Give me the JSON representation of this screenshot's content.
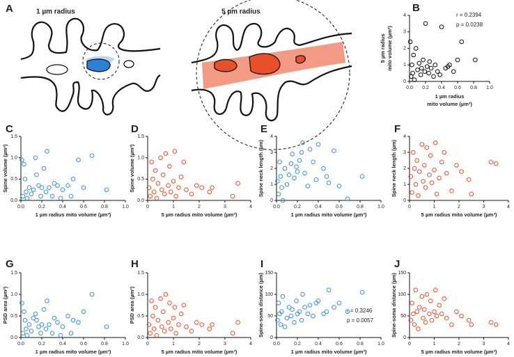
{
  "panel_a": {
    "letter": "A",
    "left_label": "1 µm radius",
    "right_label": "5 µm radius"
  },
  "chart_data": [
    {
      "type": "scatter",
      "panel": "B",
      "xlabel": [
        "1 µm radius",
        "mito volume (µm³)"
      ],
      "ylabel": [
        "5 µm radius",
        "mito volume (µm³)"
      ],
      "color": "#111111",
      "xlim": [
        0,
        1
      ],
      "xticks": [
        {
          "value": 0,
          "label": "0.0"
        },
        {
          "value": 0.2,
          "label": "0.2"
        },
        {
          "value": 0.4,
          "label": "0.4"
        },
        {
          "value": 0.6,
          "label": "0.6"
        },
        {
          "value": 0.8,
          "label": "0.8"
        },
        {
          "value": 1,
          "label": "1.0"
        }
      ],
      "ylim": [
        0,
        4
      ],
      "yticks": [
        0,
        1,
        2,
        3,
        4
      ],
      "annotations": [
        "r = 0.2394",
        "p = 0.0238"
      ],
      "x": [
        0.01,
        0.02,
        0.03,
        0.04,
        0.05,
        0.06,
        0.08,
        0.1,
        0.12,
        0.14,
        0.15,
        0.17,
        0.19,
        0.2,
        0.22,
        0.24,
        0.25,
        0.27,
        0.3,
        0.32,
        0.35,
        0.38,
        0.4,
        0.45,
        0.48,
        0.5,
        0.55,
        0.6,
        0.65,
        0.82
      ],
      "values": [
        2.4,
        0.3,
        1.0,
        0.5,
        1.6,
        0.1,
        2.0,
        0.7,
        1.1,
        0.4,
        0.8,
        1.3,
        0.6,
        3.5,
        0.9,
        0.5,
        1.2,
        0.8,
        0.3,
        1.0,
        0.6,
        0.4,
        3.3,
        0.8,
        0.9,
        1.0,
        0.6,
        1.3,
        2.4,
        1.3
      ]
    },
    {
      "type": "scatter",
      "panel": "C",
      "xlabel": "1 µm radius mito volume (µm³)",
      "ylabel": "Spine volume (µm³)",
      "color": "#3a8fd9",
      "xlim": [
        0,
        1
      ],
      "xticks": [
        {
          "value": 0,
          "label": "0.0"
        },
        {
          "value": 0.2,
          "label": "0.2"
        },
        {
          "value": 0.4,
          "label": "0.4"
        },
        {
          "value": 0.6,
          "label": "0.6"
        },
        {
          "value": 0.8,
          "label": "0.8"
        },
        {
          "value": 1,
          "label": "1.0"
        }
      ],
      "ylim": [
        0,
        1.5
      ],
      "yticks": [
        {
          "value": 0,
          "label": "0.0"
        },
        0.5,
        {
          "value": 1,
          "label": "1.0"
        },
        1.5
      ],
      "x": [
        0.01,
        0.02,
        0.03,
        0.04,
        0.05,
        0.06,
        0.08,
        0.1,
        0.12,
        0.14,
        0.15,
        0.17,
        0.19,
        0.2,
        0.22,
        0.24,
        0.25,
        0.27,
        0.3,
        0.32,
        0.35,
        0.38,
        0.4,
        0.45,
        0.48,
        0.5,
        0.55,
        0.6,
        0.68,
        0.82
      ],
      "values": [
        0.95,
        0.1,
        0.85,
        0.5,
        0.2,
        0.05,
        0.3,
        0.15,
        0.25,
        1.0,
        0.6,
        0.35,
        0.1,
        0.3,
        0.75,
        0.2,
        1.15,
        0.3,
        0.1,
        0.4,
        0.35,
        0.05,
        0.25,
        0.35,
        0.1,
        0.5,
        0.95,
        0.3,
        1.05,
        0.25
      ]
    },
    {
      "type": "scatter",
      "panel": "D",
      "xlabel": "5 µm radius mito volume (µm³)",
      "ylabel": "Spine volume (µm³)",
      "color": "#e8502a",
      "xlim": [
        0,
        4
      ],
      "xticks": [
        0,
        1,
        2,
        3,
        4
      ],
      "ylim": [
        0,
        1.5
      ],
      "yticks": [
        {
          "value": 0,
          "label": "0.0"
        },
        0.5,
        {
          "value": 1,
          "label": "1.0"
        },
        1.5
      ],
      "x": [
        0.05,
        0.1,
        0.15,
        0.2,
        0.25,
        0.3,
        0.35,
        0.4,
        0.5,
        0.55,
        0.6,
        0.65,
        0.7,
        0.8,
        0.85,
        0.9,
        1.0,
        1.05,
        1.1,
        1.2,
        1.3,
        1.4,
        1.5,
        1.7,
        1.9,
        2.1,
        2.4,
        2.5,
        3.3,
        3.5
      ],
      "values": [
        0.3,
        0.1,
        0.9,
        0.5,
        0.2,
        0.7,
        0.05,
        0.4,
        1.0,
        0.25,
        0.6,
        0.15,
        1.1,
        0.35,
        0.8,
        0.2,
        0.45,
        1.15,
        0.1,
        0.3,
        0.55,
        0.9,
        0.25,
        0.15,
        0.35,
        0.3,
        0.2,
        0.3,
        0.1,
        0.4
      ]
    },
    {
      "type": "scatter",
      "panel": "E",
      "xlabel": "1 µm radius mito volume (µm³)",
      "ylabel": "Spine neck length (µm)",
      "color": "#3a8fd9",
      "xlim": [
        0,
        1
      ],
      "xticks": [
        {
          "value": 0,
          "label": "0.0"
        },
        {
          "value": 0.2,
          "label": "0.2"
        },
        {
          "value": 0.4,
          "label": "0.4"
        },
        {
          "value": 0.6,
          "label": "0.6"
        },
        {
          "value": 0.8,
          "label": "0.8"
        },
        {
          "value": 1,
          "label": "1.0"
        }
      ],
      "ylim": [
        0,
        4
      ],
      "yticks": [
        0,
        1,
        2,
        3,
        4
      ],
      "x": [
        0.01,
        0.02,
        0.03,
        0.04,
        0.05,
        0.06,
        0.08,
        0.1,
        0.12,
        0.14,
        0.15,
        0.17,
        0.19,
        0.2,
        0.22,
        0.24,
        0.25,
        0.27,
        0.3,
        0.32,
        0.35,
        0.38,
        0.4,
        0.45,
        0.48,
        0.5,
        0.55,
        0.6,
        0.68,
        0.82
      ],
      "values": [
        1.2,
        0.4,
        2.4,
        1.5,
        0.8,
        0,
        2.0,
        1.0,
        1.6,
        2.3,
        2.9,
        1.4,
        2.1,
        1.8,
        2.5,
        3.0,
        3.6,
        1.7,
        0.9,
        3.2,
        2.4,
        1.3,
        3.5,
        2.0,
        1.5,
        1.1,
        3.1,
        0.9,
        0.1,
        1.5
      ]
    },
    {
      "type": "scatter",
      "panel": "F",
      "xlabel": "5 µm radius mito volume (µm³)",
      "ylabel": "Spine neck length (µm)",
      "color": "#e8502a",
      "xlim": [
        0,
        4
      ],
      "xticks": [
        0,
        1,
        2,
        3,
        4
      ],
      "ylim": [
        0,
        4
      ],
      "yticks": [
        0,
        1,
        2,
        3,
        4
      ],
      "x": [
        0.05,
        0.1,
        0.15,
        0.2,
        0.25,
        0.3,
        0.35,
        0.4,
        0.5,
        0.55,
        0.6,
        0.65,
        0.7,
        0.8,
        0.85,
        0.9,
        1.0,
        1.05,
        1.1,
        1.2,
        1.3,
        1.4,
        1.5,
        1.7,
        1.9,
        2.1,
        2.4,
        2.5,
        3.3,
        3.5
      ],
      "values": [
        1.5,
        0.5,
        3.0,
        2.0,
        1.0,
        2.5,
        0.3,
        1.8,
        3.5,
        1.2,
        2.2,
        0.8,
        3.3,
        1.6,
        2.8,
        1.1,
        1.9,
        3.6,
        0.4,
        1.4,
        2.4,
        3.0,
        1.7,
        0.6,
        2.2,
        1.8,
        1.3,
        0.4,
        2.4,
        2.3
      ]
    },
    {
      "type": "scatter",
      "panel": "G",
      "xlabel": "1 µm radius mito volume (µm³)",
      "ylabel": "PSD area (µm²)",
      "color": "#3a8fd9",
      "xlim": [
        0,
        1
      ],
      "xticks": [
        {
          "value": 0,
          "label": "0.0"
        },
        {
          "value": 0.2,
          "label": "0.2"
        },
        {
          "value": 0.4,
          "label": "0.4"
        },
        {
          "value": 0.6,
          "label": "0.6"
        },
        {
          "value": 0.8,
          "label": "0.8"
        },
        {
          "value": 1,
          "label": "1.0"
        }
      ],
      "ylim": [
        0,
        1.5
      ],
      "yticks": [
        {
          "value": 0,
          "label": "0.0"
        },
        0.5,
        {
          "value": 1,
          "label": "1.0"
        },
        1.5
      ],
      "x": [
        0.01,
        0.02,
        0.03,
        0.04,
        0.05,
        0.06,
        0.08,
        0.1,
        0.12,
        0.14,
        0.15,
        0.17,
        0.19,
        0.2,
        0.22,
        0.24,
        0.25,
        0.27,
        0.3,
        0.32,
        0.35,
        0.38,
        0.4,
        0.45,
        0.48,
        0.5,
        0.55,
        0.6,
        0.68,
        0.82
      ],
      "values": [
        0.8,
        0.1,
        0.6,
        0.4,
        0.2,
        0.05,
        0.3,
        0.15,
        0.45,
        0.55,
        0.4,
        0.25,
        0.1,
        0.3,
        0.65,
        0.2,
        0.85,
        0.3,
        0.1,
        0.45,
        0.35,
        0.05,
        0.25,
        0.5,
        0.1,
        0.4,
        0.35,
        0.6,
        1.0,
        0.25
      ]
    },
    {
      "type": "scatter",
      "panel": "H",
      "xlabel": "5 µm radius mito volume (µm³)",
      "ylabel": "PSD area (µm²)",
      "color": "#e8502a",
      "xlim": [
        0,
        4
      ],
      "xticks": [
        0,
        1,
        2,
        3,
        4
      ],
      "ylim": [
        0,
        1.5
      ],
      "yticks": [
        {
          "value": 0,
          "label": "0.0"
        },
        0.5,
        {
          "value": 1,
          "label": "1.0"
        },
        1.5
      ],
      "x": [
        0.05,
        0.1,
        0.15,
        0.2,
        0.25,
        0.3,
        0.35,
        0.4,
        0.5,
        0.55,
        0.6,
        0.65,
        0.7,
        0.8,
        0.85,
        0.9,
        1.0,
        1.05,
        1.1,
        1.2,
        1.3,
        1.4,
        1.5,
        1.7,
        1.9,
        2.1,
        2.4,
        2.5,
        3.3,
        3.5
      ],
      "values": [
        0.3,
        0.1,
        0.85,
        0.5,
        0.2,
        0.7,
        0.05,
        0.4,
        0.9,
        0.25,
        0.6,
        0.15,
        1.0,
        0.35,
        0.8,
        0.2,
        0.45,
        0.7,
        0.1,
        0.3,
        0.55,
        0.75,
        0.25,
        0.15,
        0.35,
        0.3,
        0.2,
        0.3,
        0.1,
        0.35
      ]
    },
    {
      "type": "scatter",
      "panel": "I",
      "xlabel": "1 µm radius mito volume (µm³)",
      "ylabel": "Spine-soma distance (µm)",
      "color": "#3a8fd9",
      "xlim": [
        0,
        1
      ],
      "xticks": [
        {
          "value": 0,
          "label": "0.0"
        },
        {
          "value": 0.2,
          "label": "0.2"
        },
        {
          "value": 0.4,
          "label": "0.4"
        },
        {
          "value": 0.6,
          "label": "0.6"
        },
        {
          "value": 0.8,
          "label": "0.8"
        },
        {
          "value": 1,
          "label": "1.0"
        }
      ],
      "ylim": [
        0,
        150
      ],
      "yticks": [
        0,
        50,
        100,
        150
      ],
      "annotations": [
        "r = 0.3246",
        "p = 0.0057"
      ],
      "x": [
        0.01,
        0.02,
        0.03,
        0.04,
        0.05,
        0.06,
        0.08,
        0.1,
        0.12,
        0.14,
        0.15,
        0.17,
        0.19,
        0.2,
        0.22,
        0.24,
        0.25,
        0.27,
        0.3,
        0.32,
        0.35,
        0.38,
        0.4,
        0.45,
        0.48,
        0.5,
        0.55,
        0.6,
        0.68,
        0.82
      ],
      "values": [
        40,
        80,
        55,
        30,
        60,
        95,
        25,
        45,
        70,
        50,
        65,
        35,
        85,
        55,
        60,
        40,
        100,
        70,
        55,
        75,
        50,
        80,
        85,
        55,
        60,
        110,
        70,
        80,
        60,
        105
      ]
    },
    {
      "type": "scatter",
      "panel": "J",
      "xlabel": "5 µm radius mito volume (µm³)",
      "ylabel": "Spine-soma distance (µm)",
      "color": "#e8502a",
      "xlim": [
        0,
        4
      ],
      "xticks": [
        0,
        1,
        2,
        3,
        4
      ],
      "ylim": [
        0,
        150
      ],
      "yticks": [
        0,
        50,
        100,
        150
      ],
      "x": [
        0.05,
        0.1,
        0.15,
        0.2,
        0.25,
        0.3,
        0.35,
        0.4,
        0.5,
        0.55,
        0.6,
        0.65,
        0.7,
        0.8,
        0.85,
        0.9,
        1.0,
        1.05,
        1.1,
        1.2,
        1.3,
        1.4,
        1.5,
        1.7,
        1.9,
        2.1,
        2.4,
        2.5,
        3.3,
        3.5
      ],
      "values": [
        40,
        80,
        55,
        30,
        110,
        60,
        20,
        70,
        95,
        45,
        65,
        35,
        100,
        55,
        85,
        40,
        60,
        110,
        50,
        75,
        55,
        90,
        45,
        30,
        60,
        50,
        40,
        30,
        35,
        30
      ]
    }
  ]
}
